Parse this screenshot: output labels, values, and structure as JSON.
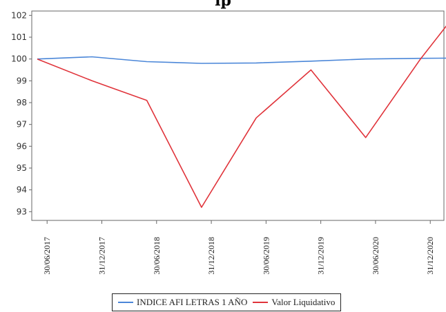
{
  "chart_data": {
    "type": "line",
    "title": "",
    "title_partial_visible": "lp",
    "x": [
      "30/06/2017",
      "31/12/2017",
      "30/06/2018",
      "31/12/2018",
      "30/06/2019",
      "31/12/2019",
      "30/06/2020",
      "31/12/2020",
      "2021-02"
    ],
    "categories": [
      "30/06/2017",
      "31/12/2017",
      "30/06/2018",
      "31/12/2018",
      "30/06/2019",
      "31/12/2019",
      "30/06/2020",
      "31/12/2020"
    ],
    "series": [
      {
        "name": "INDICE AFI LETRAS 1 AÑO",
        "color": "#4a86d8",
        "points": [
          {
            "x": "2017-05",
            "y": 100.0
          },
          {
            "x": "2017-11",
            "y": 100.1
          },
          {
            "x": "2018-05",
            "y": 99.88
          },
          {
            "x": "2018-11",
            "y": 99.8
          },
          {
            "x": "2019-05",
            "y": 99.82
          },
          {
            "x": "2019-11",
            "y": 99.9
          },
          {
            "x": "2020-05",
            "y": 100.0
          },
          {
            "x": "2020-11",
            "y": 100.03
          },
          {
            "x": "2021-02",
            "y": 100.04
          }
        ]
      },
      {
        "name": "Valor Liquidativo",
        "color": "#e0333a",
        "points": [
          {
            "x": "2017-05",
            "y": 100.0
          },
          {
            "x": "2017-11",
            "y": 99.0
          },
          {
            "x": "2018-05",
            "y": 98.1
          },
          {
            "x": "2018-11",
            "y": 93.2
          },
          {
            "x": "2019-05",
            "y": 97.3
          },
          {
            "x": "2019-11",
            "y": 99.5
          },
          {
            "x": "2020-05",
            "y": 96.4
          },
          {
            "x": "2020-11",
            "y": 100.0
          },
          {
            "x": "2021-02",
            "y": 101.6
          }
        ]
      }
    ],
    "yticks": [
      93,
      94,
      95,
      96,
      97,
      98,
      99,
      100,
      101,
      102
    ],
    "ylim": [
      92.6,
      102.2
    ],
    "xlabel": "",
    "ylabel": "",
    "grid": false,
    "legend_position": "bottom"
  }
}
